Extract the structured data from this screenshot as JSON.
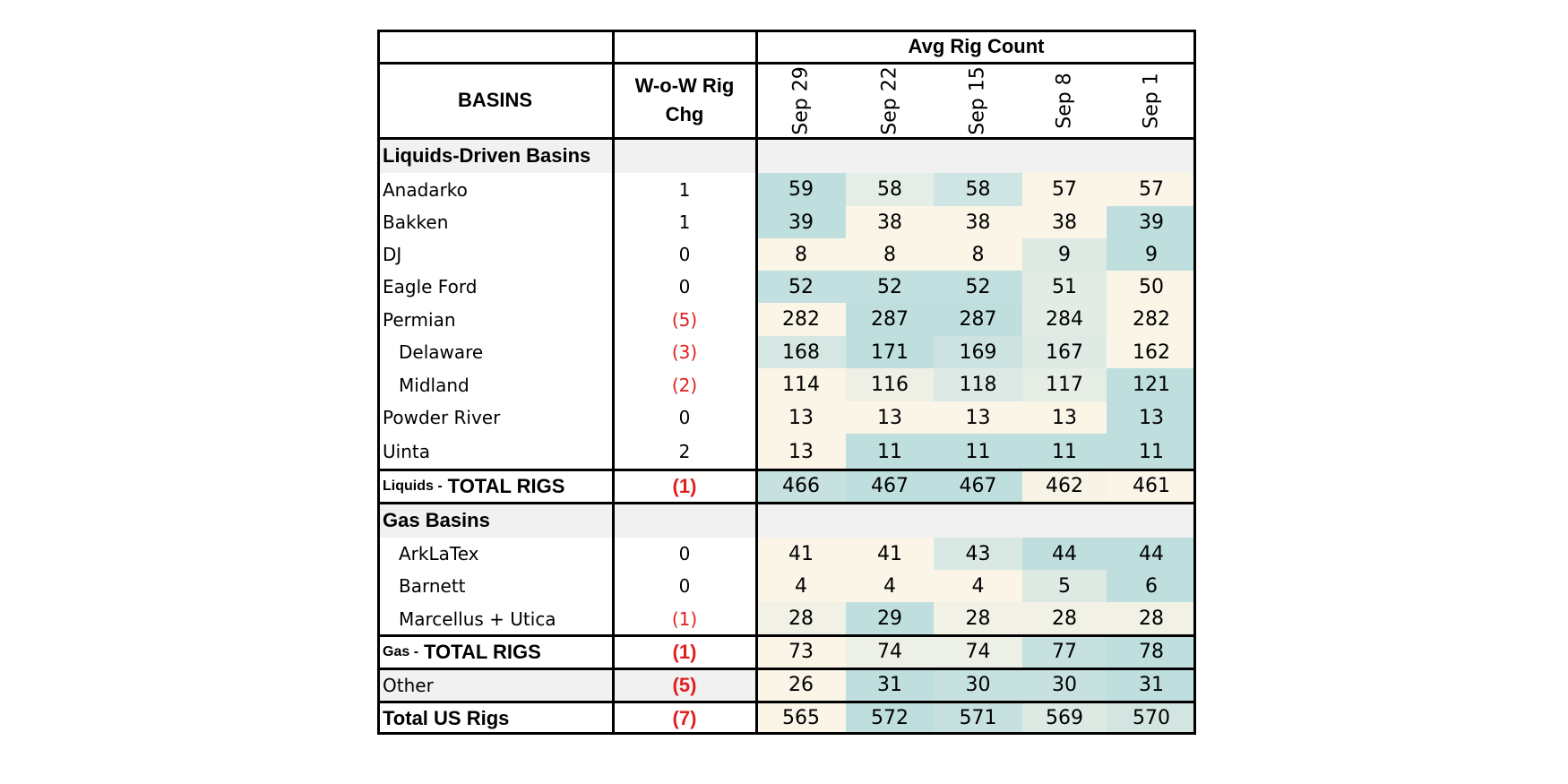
{
  "header": {
    "avg_rig_count": "Avg Rig Count",
    "basins": "BASINS",
    "wow_line1": "W-o-W Rig",
    "wow_line2": "Chg",
    "dates": [
      "Sep 29",
      "Sep 22",
      "Sep 15",
      "Sep 8",
      "Sep 1"
    ]
  },
  "liquids": {
    "section_title": "Liquids-Driven Basins",
    "rows": [
      {
        "name": "Anadarko",
        "chg": "1",
        "values": [
          "59",
          "58",
          "58",
          "57",
          "57"
        ],
        "colors": [
          "#bfdfdf",
          "#e4ede6",
          "#cfe5e3",
          "#fbf5e8",
          "#fbf5e8"
        ]
      },
      {
        "name": "Bakken",
        "chg": "1",
        "values": [
          "39",
          "38",
          "38",
          "38",
          "39"
        ],
        "colors": [
          "#bfdfdf",
          "#fbf5e8",
          "#fbf5e8",
          "#fbf5e8",
          "#bfdfdf"
        ]
      },
      {
        "name": "DJ",
        "chg": "0",
        "values": [
          "8",
          "8",
          "8",
          "9",
          "9"
        ],
        "colors": [
          "#fbf5e8",
          "#fbf5e8",
          "#fbf5e8",
          "#dde9e3",
          "#bfdfdf"
        ]
      },
      {
        "name": "Eagle Ford",
        "chg": "0",
        "values": [
          "52",
          "52",
          "52",
          "51",
          "50"
        ],
        "colors": [
          "#c1e0df",
          "#c1e0df",
          "#c1e0df",
          "#e3ece4",
          "#fbf5e8"
        ]
      },
      {
        "name": "Permian",
        "chg": "(5)",
        "values": [
          "282",
          "287",
          "287",
          "284",
          "282"
        ],
        "colors": [
          "#fbf5e8",
          "#bfdfdf",
          "#bfdfdf",
          "#e3ece4",
          "#fbf5e8"
        ]
      },
      {
        "name": "Delaware",
        "chg": "(3)",
        "values": [
          "168",
          "171",
          "169",
          "167",
          "162"
        ],
        "colors": [
          "#d6e6e2",
          "#bfdfdf",
          "#cde3e1",
          "#dfeae4",
          "#fbf5e8"
        ]
      },
      {
        "name": "Midland",
        "chg": "(2)",
        "values": [
          "114",
          "116",
          "118",
          "117",
          "121"
        ],
        "colors": [
          "#fbf5e8",
          "#eef0e6",
          "#dce9e4",
          "#e5ede5",
          "#bfdfdf"
        ]
      },
      {
        "name": "Powder River",
        "chg": "0",
        "values": [
          "13",
          "13",
          "13",
          "13",
          "13"
        ],
        "colors": [
          "#fbf5e8",
          "#fbf5e8",
          "#fbf5e8",
          "#fbf5e8",
          "#bfdfdf"
        ]
      },
      {
        "name": "Uinta",
        "chg": "2",
        "values": [
          "13",
          "11",
          "11",
          "11",
          "11"
        ],
        "colors": [
          "#fbf5e8",
          "#bfdfdf",
          "#bfdfdf",
          "#bfdfdf",
          "#bfdfdf"
        ]
      }
    ],
    "total_small": "Liquids -",
    "total_label": "TOTAL RIGS",
    "total_chg": "(1)",
    "total_values": [
      "466",
      "467",
      "467",
      "462",
      "461"
    ],
    "total_colors": [
      "#c6e1df",
      "#bfdfdf",
      "#bfdfdf",
      "#f7f3e7",
      "#fbf5e8"
    ]
  },
  "gas": {
    "section_title": "Gas Basins",
    "rows": [
      {
        "name": "ArkLaTex",
        "chg": "0",
        "values": [
          "41",
          "41",
          "43",
          "44",
          "44"
        ],
        "colors": [
          "#fbf5e8",
          "#fbf5e8",
          "#d9e8e3",
          "#bfdfdf",
          "#bfdfdf"
        ]
      },
      {
        "name": "Barnett",
        "chg": "0",
        "values": [
          "4",
          "4",
          "4",
          "5",
          "6"
        ],
        "colors": [
          "#fbf5e8",
          "#fbf5e8",
          "#fbf5e8",
          "#dde9e3",
          "#bfdfdf"
        ]
      },
      {
        "name": "Marcellus + Utica",
        "chg": "(1)",
        "values": [
          "28",
          "29",
          "28",
          "28",
          "28"
        ],
        "colors": [
          "#f1f1e6",
          "#bfdfdf",
          "#f1f1e6",
          "#f1f1e6",
          "#f1f1e6"
        ]
      }
    ],
    "total_small": "Gas -",
    "total_label": "TOTAL RIGS",
    "total_chg": "(1)",
    "total_values": [
      "73",
      "74",
      "74",
      "77",
      "78"
    ],
    "total_colors": [
      "#fbf5e8",
      "#edf0e6",
      "#edf0e6",
      "#c6e1df",
      "#bfdfdf"
    ]
  },
  "other": {
    "name": "Other",
    "chg": "(5)",
    "values": [
      "26",
      "31",
      "30",
      "30",
      "31"
    ],
    "colors": [
      "#fbf5e8",
      "#bfdfdf",
      "#c6e1df",
      "#c6e1df",
      "#bfdfdf"
    ]
  },
  "total_us": {
    "name": "Total US Rigs",
    "chg": "(7)",
    "values": [
      "565",
      "572",
      "571",
      "569",
      "570"
    ],
    "colors": [
      "#fbf5e8",
      "#bfdfdf",
      "#c6e1df",
      "#dde9e3",
      "#d2e5e1"
    ]
  }
}
